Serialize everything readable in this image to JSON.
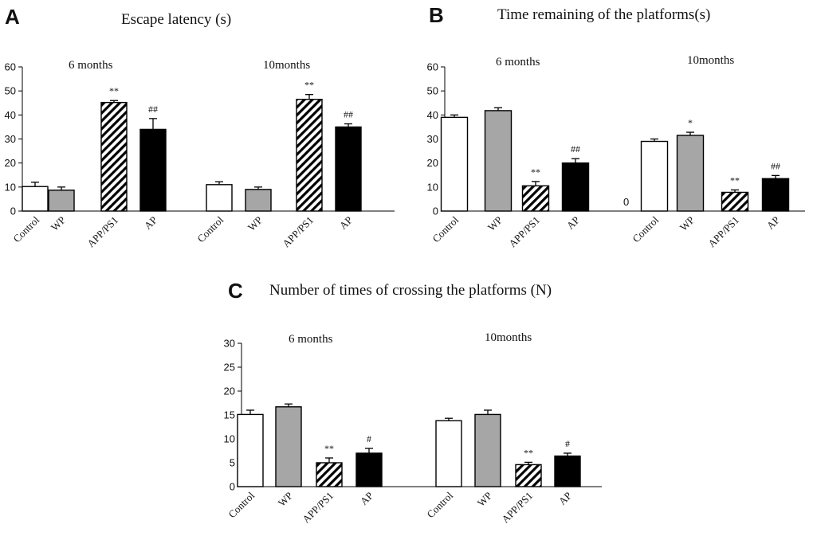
{
  "colors": {
    "control": "#ffffff",
    "wp": "#a6a6a6",
    "app": "hatch",
    "ap": "#000000",
    "stroke": "#000000"
  },
  "chart_data": [
    {
      "panel": "A",
      "type": "bar",
      "title": "Escape latency (s)",
      "groups": [
        "6 months",
        "10months"
      ],
      "categories": [
        "Control",
        "WP",
        "APP/PS1",
        "AP"
      ],
      "ylim": [
        0,
        60
      ],
      "yticks": [
        0,
        10,
        20,
        30,
        40,
        50,
        60
      ],
      "series": [
        {
          "group": "6 months",
          "values": [
            10.2,
            8.7,
            45.2,
            34.0
          ],
          "errors": [
            1.8,
            1.3,
            0.8,
            4.5
          ],
          "significance": [
            "",
            "",
            "**",
            "##"
          ]
        },
        {
          "group": "10months",
          "values": [
            11.0,
            9.0,
            46.5,
            35.0
          ],
          "errors": [
            1.2,
            1.0,
            2.0,
            1.3
          ],
          "significance": [
            "",
            "",
            "**",
            "##"
          ]
        }
      ]
    },
    {
      "panel": "B",
      "type": "bar",
      "title": "Time remaining of  the platforms(s)",
      "groups": [
        "6 months",
        "10months"
      ],
      "categories": [
        "Control",
        "WP",
        "APP/PS1",
        "AP"
      ],
      "ylim": [
        0,
        60
      ],
      "yticks": [
        0,
        10,
        20,
        30,
        40,
        50,
        60
      ],
      "annotation": "0",
      "series": [
        {
          "group": "6 months",
          "values": [
            39.0,
            41.8,
            10.5,
            20.0
          ],
          "errors": [
            1.0,
            1.2,
            1.8,
            1.8
          ],
          "significance": [
            "",
            "",
            "**",
            "##"
          ]
        },
        {
          "group": "10months",
          "values": [
            29.0,
            31.5,
            7.8,
            13.5
          ],
          "errors": [
            1.0,
            1.3,
            1.0,
            1.3
          ],
          "significance": [
            "",
            "*",
            "**",
            "##"
          ]
        }
      ]
    },
    {
      "panel": "C",
      "type": "bar",
      "title": "Number of times of crossing the platforms (N)",
      "groups": [
        "6 months",
        "10months"
      ],
      "categories": [
        "Control",
        "WP",
        "APP/PS1",
        "AP"
      ],
      "ylim": [
        0,
        30
      ],
      "yticks": [
        0,
        5,
        10,
        15,
        20,
        25,
        30
      ],
      "series": [
        {
          "group": "6 months",
          "values": [
            15.1,
            16.7,
            5.0,
            7.0
          ],
          "errors": [
            0.9,
            0.6,
            1.0,
            1.0
          ],
          "significance": [
            "",
            "",
            "**",
            "#"
          ]
        },
        {
          "group": "10months",
          "values": [
            13.8,
            15.1,
            4.6,
            6.4
          ],
          "errors": [
            0.5,
            0.9,
            0.5,
            0.6
          ],
          "significance": [
            "",
            "",
            "**",
            "#"
          ]
        }
      ]
    }
  ]
}
